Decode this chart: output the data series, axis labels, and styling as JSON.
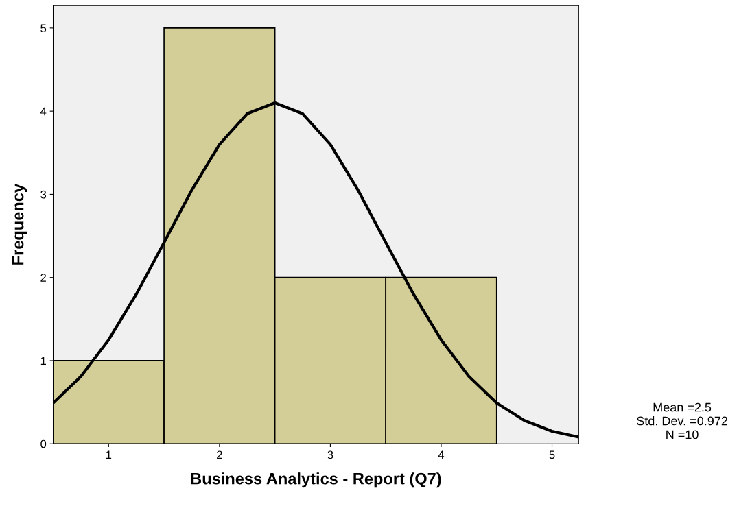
{
  "chart_data": {
    "type": "histogram",
    "xlabel": "Business Analytics - Report (Q7)",
    "ylabel": "Frequency",
    "bins": [
      0.5,
      1.5,
      2.5,
      3.5,
      4.5
    ],
    "values": [
      1,
      5,
      2,
      2
    ],
    "color": "#d3ce97",
    "series": [
      {
        "type": "line",
        "color": "#000000",
        "x": [
          0.5,
          0.75,
          1.0,
          1.25,
          1.5,
          1.75,
          2.0,
          2.25,
          2.5,
          2.75,
          3.0,
          3.25,
          3.5,
          3.75,
          4.0,
          4.25,
          4.5,
          4.75,
          5.0,
          5.24
        ],
        "values": [
          0.49,
          0.81,
          1.25,
          1.8,
          2.42,
          3.05,
          3.6,
          3.97,
          4.1,
          3.97,
          3.6,
          3.05,
          2.42,
          1.8,
          1.25,
          0.81,
          0.49,
          0.28,
          0.15,
          0.08
        ]
      }
    ],
    "xlim": [
      0.5,
      5.24
    ],
    "ylim": [
      0,
      5.27
    ],
    "xticks": [
      1,
      2,
      3,
      4,
      5
    ],
    "yticks": [
      0,
      1,
      2,
      3,
      4,
      5
    ],
    "grid": false,
    "legend": false,
    "annotations": [
      "Mean =2.5",
      "Std. Dev. =0.972",
      "N =10"
    ]
  }
}
